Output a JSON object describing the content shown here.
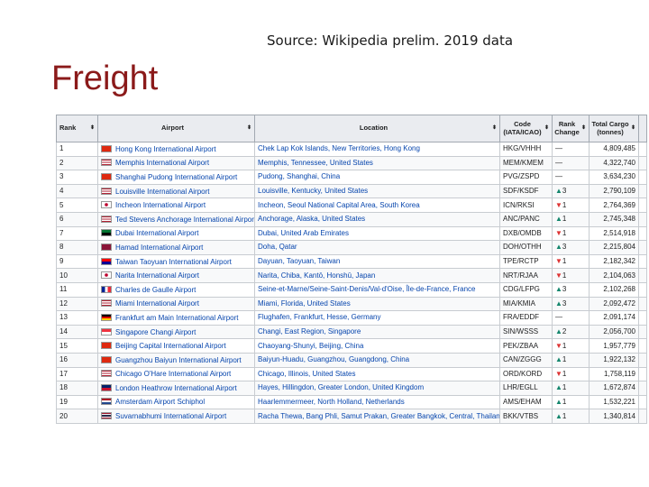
{
  "source_note": "Source: Wikipedia prelim. 2019 data",
  "slide_title": "Freight",
  "table": {
    "headers": {
      "rank": "Rank",
      "airport": "Airport",
      "location": "Location",
      "code": "Code (IATA/ICAO)",
      "rank_change": "Rank Change",
      "total_cargo": "Total Cargo (tonnes)"
    },
    "rows": [
      {
        "rank": "1",
        "flag": "hk",
        "airport": "Hong Kong International Airport",
        "location": "Chek Lap Kok Islands, New Territories, Hong Kong",
        "code": "HKG/VHHH",
        "change": "—",
        "change_dir": "same",
        "cargo": "4,809,485"
      },
      {
        "rank": "2",
        "flag": "us",
        "airport": "Memphis International Airport",
        "location": "Memphis, Tennessee, United States",
        "code": "MEM/KMEM",
        "change": "—",
        "change_dir": "same",
        "cargo": "4,322,740"
      },
      {
        "rank": "3",
        "flag": "cn",
        "airport": "Shanghai Pudong International Airport",
        "location": "Pudong, Shanghai, China",
        "code": "PVG/ZSPD",
        "change": "—",
        "change_dir": "same",
        "cargo": "3,634,230"
      },
      {
        "rank": "4",
        "flag": "us",
        "airport": "Louisville International Airport",
        "location": "Louisville, Kentucky, United States",
        "code": "SDF/KSDF",
        "change": "3",
        "change_dir": "up",
        "cargo": "2,790,109"
      },
      {
        "rank": "5",
        "flag": "kr",
        "airport": "Incheon International Airport",
        "location": "Incheon, Seoul National Capital Area, South Korea",
        "code": "ICN/RKSI",
        "change": "1",
        "change_dir": "down",
        "cargo": "2,764,369"
      },
      {
        "rank": "6",
        "flag": "us",
        "airport": "Ted Stevens Anchorage International Airport",
        "location": "Anchorage, Alaska, United States",
        "code": "ANC/PANC",
        "change": "1",
        "change_dir": "up",
        "cargo": "2,745,348"
      },
      {
        "rank": "7",
        "flag": "ae",
        "airport": "Dubai International Airport",
        "location": "Dubai, United Arab Emirates",
        "code": "DXB/OMDB",
        "change": "1",
        "change_dir": "down",
        "cargo": "2,514,918"
      },
      {
        "rank": "8",
        "flag": "qa",
        "airport": "Hamad International Airport",
        "location": "Doha, Qatar",
        "code": "DOH/OTHH",
        "change": "3",
        "change_dir": "up",
        "cargo": "2,215,804"
      },
      {
        "rank": "9",
        "flag": "tw",
        "airport": "Taiwan Taoyuan International Airport",
        "location": "Dayuan, Taoyuan, Taiwan",
        "code": "TPE/RCTP",
        "change": "1",
        "change_dir": "down",
        "cargo": "2,182,342"
      },
      {
        "rank": "10",
        "flag": "jp",
        "airport": "Narita International Airport",
        "location": "Narita, Chiba, Kantō, Honshū, Japan",
        "code": "NRT/RJAA",
        "change": "1",
        "change_dir": "down",
        "cargo": "2,104,063"
      },
      {
        "rank": "11",
        "flag": "fr",
        "airport": "Charles de Gaulle Airport",
        "location": "Seine-et-Marne/Seine-Saint-Denis/Val-d'Oise, Île-de-France, France",
        "code": "CDG/LFPG",
        "change": "3",
        "change_dir": "up",
        "cargo": "2,102,268"
      },
      {
        "rank": "12",
        "flag": "us",
        "airport": "Miami International Airport",
        "location": "Miami, Florida, United States",
        "code": "MIA/KMIA",
        "change": "3",
        "change_dir": "up",
        "cargo": "2,092,472"
      },
      {
        "rank": "13",
        "flag": "de",
        "airport": "Frankfurt am Main International Airport",
        "location": "Flughafen, Frankfurt, Hesse, Germany",
        "code": "FRA/EDDF",
        "change": "—",
        "change_dir": "same",
        "cargo": "2,091,174"
      },
      {
        "rank": "14",
        "flag": "sg",
        "airport": "Singapore Changi Airport",
        "location": "Changi, East Region, Singapore",
        "code": "SIN/WSSS",
        "change": "2",
        "change_dir": "up",
        "cargo": "2,056,700"
      },
      {
        "rank": "15",
        "flag": "cn",
        "airport": "Beijing Capital International Airport",
        "location": "Chaoyang-Shunyi, Beijing, China",
        "code": "PEK/ZBAA",
        "change": "1",
        "change_dir": "down",
        "cargo": "1,957,779"
      },
      {
        "rank": "16",
        "flag": "cn",
        "airport": "Guangzhou Baiyun International Airport",
        "location": "Baiyun-Huadu, Guangzhou, Guangdong, China",
        "code": "CAN/ZGGG",
        "change": "1",
        "change_dir": "up",
        "cargo": "1,922,132"
      },
      {
        "rank": "17",
        "flag": "us",
        "airport": "Chicago O'Hare International Airport",
        "location": "Chicago, Illinois, United States",
        "code": "ORD/KORD",
        "change": "1",
        "change_dir": "down",
        "cargo": "1,758,119"
      },
      {
        "rank": "18",
        "flag": "gb",
        "airport": "London Heathrow International Airport",
        "location": "Hayes, Hillingdon, Greater London, United Kingdom",
        "code": "LHR/EGLL",
        "change": "1",
        "change_dir": "up",
        "cargo": "1,672,874"
      },
      {
        "rank": "19",
        "flag": "nl",
        "airport": "Amsterdam Airport Schiphol",
        "location": "Haarlemmermeer, North Holland, Netherlands",
        "code": "AMS/EHAM",
        "change": "1",
        "change_dir": "up",
        "cargo": "1,532,221"
      },
      {
        "rank": "20",
        "flag": "th",
        "airport": "Suvarnabhumi International Airport",
        "location": "Racha Thewa, Bang Phli, Samut Prakan, Greater Bangkok, Central, Thailand",
        "code": "BKK/VTBS",
        "change": "1",
        "change_dir": "up",
        "cargo": "1,340,814"
      }
    ]
  },
  "flag_colors": {
    "hk": [
      "#de2910",
      "#de2910"
    ],
    "us": [
      "#b22234",
      "#ffffff"
    ],
    "cn": [
      "#de2910",
      "#de2910"
    ],
    "kr": [
      "#ffffff",
      "#ffffff"
    ],
    "ae": [
      "#00732f",
      "#000000"
    ],
    "qa": [
      "#8a1538",
      "#8a1538"
    ],
    "tw": [
      "#fe0000",
      "#000095"
    ],
    "jp": [
      "#ffffff",
      "#ffffff"
    ],
    "fr": [
      "#002395",
      "#ed2939"
    ],
    "de": [
      "#000000",
      "#ffce00"
    ],
    "sg": [
      "#ef3340",
      "#ffffff"
    ],
    "gb": [
      "#012169",
      "#c8102e"
    ],
    "nl": [
      "#ae1c28",
      "#21468b"
    ],
    "th": [
      "#a51931",
      "#2d2a4a"
    ]
  }
}
